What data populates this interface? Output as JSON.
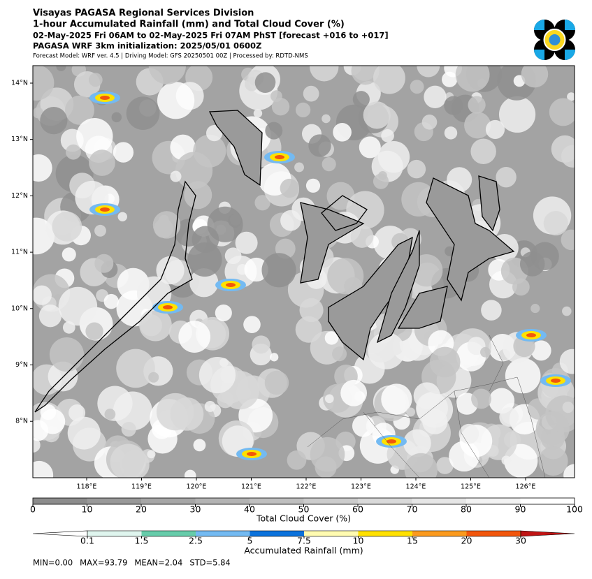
{
  "header": {
    "lines": [
      "Visayas PAGASA Regional Services Division",
      "1-hour Accumulated Rainfall (mm) and Total Cloud Cover (%)",
      "02-May-2025 Fri 06AM to 02-May-2025 Fri 07AM PhST [forecast +016 to +017]",
      "PAGASA WRF 3km initialization: 2025/05/01 0600Z"
    ],
    "subline": "Forecast Model: WRF ver. 4.5 | Driving Model: GFS 20250501 00Z | Processed by: RDTD-NMS"
  },
  "map": {
    "lat_labels": [
      "14°N",
      "13°N",
      "12°N",
      "11°N",
      "10°N",
      "9°N",
      "8°N"
    ],
    "lon_labels": [
      "118°E",
      "119°E",
      "120°E",
      "121°E",
      "122°E",
      "123°E",
      "124°E",
      "125°E",
      "126°E"
    ]
  },
  "cloud_cover": {
    "label": "Total Cloud Cover (%)",
    "ticks": [
      0,
      10,
      20,
      30,
      40,
      50,
      60,
      70,
      80,
      90,
      100
    ],
    "colors": [
      "#8c8c8c",
      "#999999",
      "#a6a6a6",
      "#b3b3b3",
      "#bfbfbf",
      "#cccccc",
      "#d9d9d9",
      "#e6e6e6",
      "#f2f2f2",
      "#ffffff"
    ]
  },
  "rainfall": {
    "label": "Accumulated Rainfall (mm)",
    "ticks": [
      0.1,
      1.5,
      2.5,
      5,
      7.5,
      10,
      15,
      20,
      30
    ],
    "colors": [
      "#ffffff",
      "#dff5ee",
      "#66ccaa",
      "#73baf2",
      "#0a72dc",
      "#fffbb0",
      "#ffe100",
      "#fb9a1e",
      "#f2560c",
      "#c01414"
    ]
  },
  "stats": [
    "MIN=0.00",
    "MAX=93.79",
    "MEAN=2.04",
    "STD=5.84"
  ]
}
